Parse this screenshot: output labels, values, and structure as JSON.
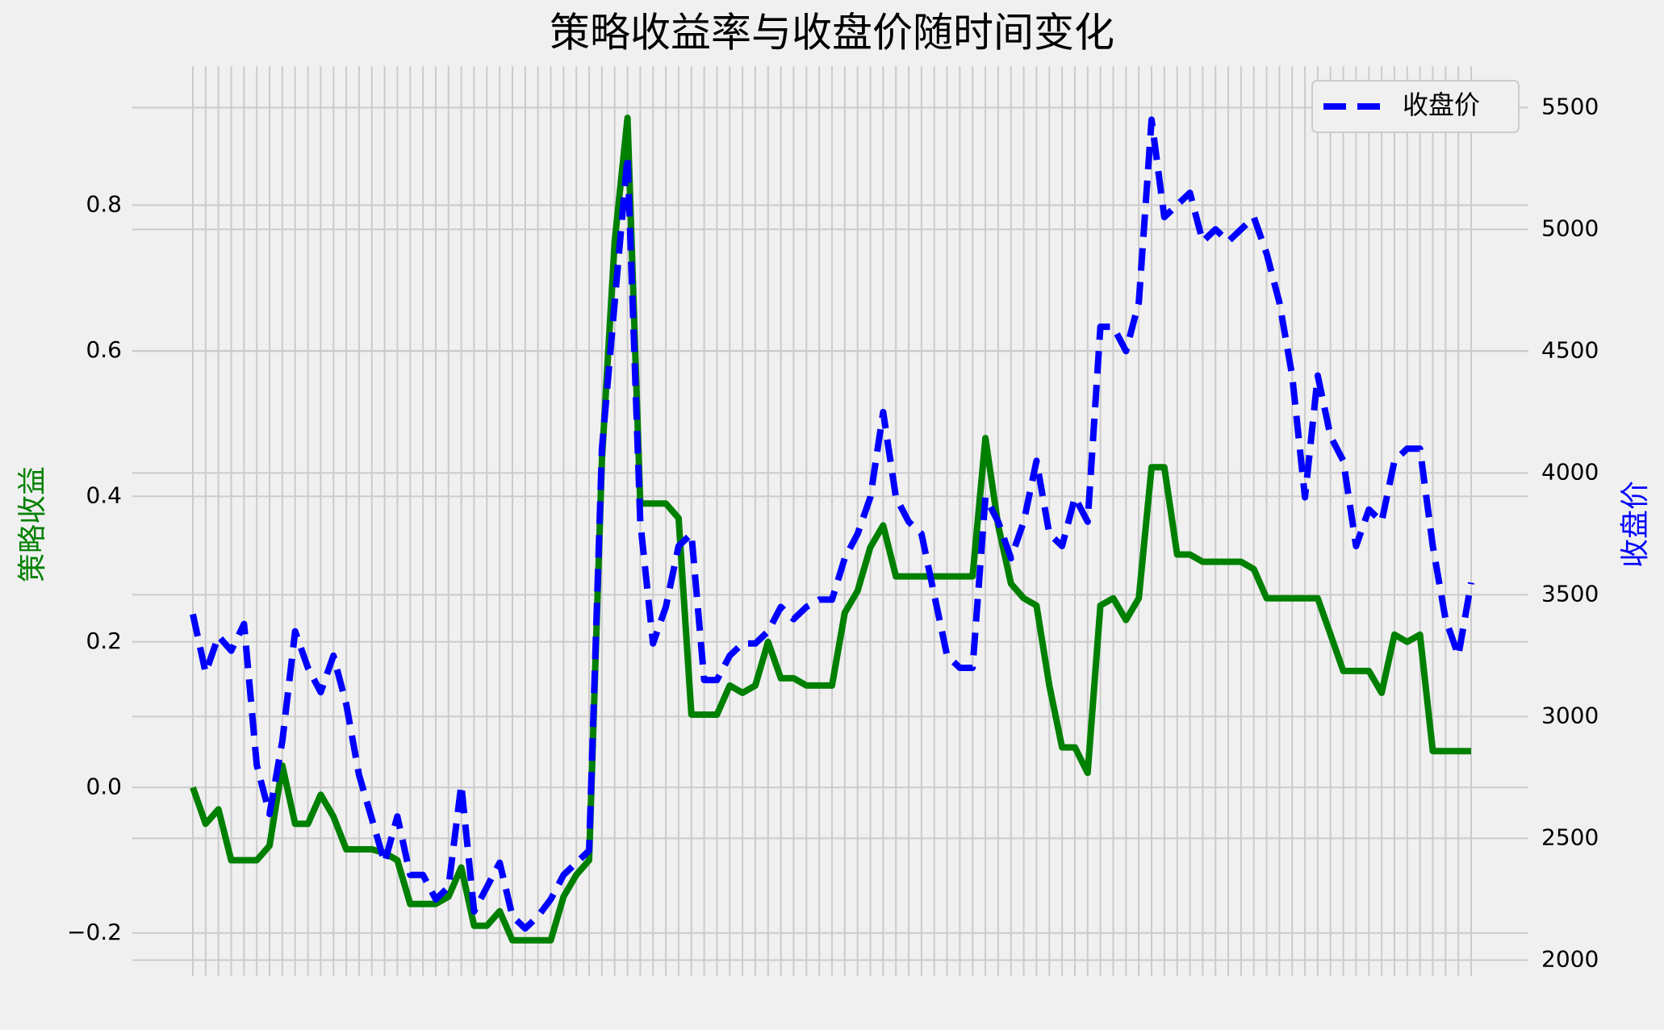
{
  "chart_data": {
    "type": "line",
    "title": "策略收益率与收盘价随时间变化",
    "ylabel": "策略收益",
    "y2label": "收盘价",
    "categories": [
      null,
      null,
      null,
      null,
      null,
      null,
      null,
      null,
      null,
      null,
      null,
      null,
      null,
      null,
      null,
      null,
      null,
      null,
      null,
      null,
      null,
      null,
      null,
      null,
      null,
      null,
      null,
      null,
      null,
      null,
      null,
      null,
      null,
      null,
      null,
      null,
      null,
      null,
      null,
      null,
      null,
      null,
      null,
      null,
      null,
      null,
      null,
      null,
      null,
      null,
      null,
      null,
      null,
      null,
      null,
      null,
      null,
      null,
      null,
      null,
      null,
      null,
      null,
      null,
      null,
      null,
      null,
      null,
      null,
      null,
      null,
      null,
      null,
      null,
      null,
      null,
      null,
      null,
      null,
      null,
      null,
      null,
      null,
      null,
      null,
      null,
      null,
      null,
      null,
      null,
      null,
      null,
      null,
      null,
      null,
      null,
      null,
      null,
      null,
      null,
      null
    ],
    "series": [
      {
        "color": "#008000",
        "style": "solid",
        "values": [
          0.0,
          -0.05,
          -0.03,
          -0.1,
          -0.1,
          -0.1,
          -0.08,
          0.03,
          -0.05,
          -0.05,
          -0.01,
          -0.04,
          -0.085,
          -0.085,
          -0.085,
          -0.09,
          -0.1,
          -0.16,
          -0.16,
          -0.16,
          -0.15,
          -0.11,
          -0.19,
          -0.19,
          -0.17,
          -0.21,
          -0.21,
          -0.21,
          -0.21,
          -0.15,
          -0.12,
          -0.1,
          0.45,
          0.75,
          0.92,
          0.39,
          0.39,
          0.39,
          0.37,
          0.1,
          0.1,
          0.1,
          0.14,
          0.13,
          0.14,
          0.2,
          0.15,
          0.15,
          0.14,
          0.14,
          0.14,
          0.24,
          0.27,
          0.33,
          0.36,
          0.29,
          0.29,
          0.29,
          0.29,
          0.29,
          0.29,
          0.29,
          0.48,
          0.36,
          0.28,
          0.26,
          0.25,
          0.14,
          0.055,
          0.055,
          0.02,
          0.25,
          0.26,
          0.23,
          0.26,
          0.44,
          0.44,
          0.32,
          0.32,
          0.31,
          0.31,
          0.31,
          0.31,
          0.3,
          0.26,
          0.26,
          0.26,
          0.26,
          0.26,
          0.21,
          0.16,
          0.16,
          0.16,
          0.13,
          0.21,
          0.2,
          0.21,
          0.05,
          0.05,
          0.05,
          0.05
        ]
      },
      {
        "name": "收盘价",
        "color": "#0000ff",
        "style": "dashed",
        "axis": "y2",
        "values": [
          3420,
          3180,
          3330,
          3270,
          3380,
          2800,
          2600,
          2900,
          3350,
          3200,
          3100,
          3250,
          3050,
          2760,
          2580,
          2400,
          2590,
          2350,
          2350,
          2250,
          2300,
          2720,
          2200,
          2300,
          2400,
          2180,
          2130,
          2180,
          2250,
          2350,
          2400,
          2450,
          4100,
          4700,
          5300,
          3800,
          3300,
          3450,
          3700,
          3750,
          3150,
          3150,
          3250,
          3300,
          3300,
          3350,
          3450,
          3400,
          3450,
          3480,
          3480,
          3650,
          3750,
          3900,
          4250,
          3900,
          3800,
          3750,
          3500,
          3250,
          3200,
          3200,
          3900,
          3800,
          3650,
          3800,
          4050,
          3750,
          3700,
          3900,
          3800,
          4600,
          4600,
          4500,
          4700,
          5450,
          5050,
          5100,
          5150,
          4950,
          5000,
          4950,
          5000,
          5050,
          4900,
          4700,
          4400,
          3900,
          4400,
          4150,
          4050,
          3700,
          3850,
          3800,
          4050,
          4100,
          4100,
          3700,
          3400,
          3250,
          3550
        ]
      }
    ],
    "ylim": [
      -0.259,
      0.991
    ],
    "yticks": [
      {
        "value": -0.2,
        "label": "−0.2"
      },
      {
        "value": 0,
        "label": "0.0"
      },
      0.2,
      0.4,
      0.6,
      0.8
    ],
    "y2lim": [
      1935,
      5670
    ],
    "y2ticks": [
      2000,
      2500,
      3000,
      3500,
      4000,
      4500,
      5000,
      5500
    ],
    "grid": true,
    "legend": "upper right"
  }
}
